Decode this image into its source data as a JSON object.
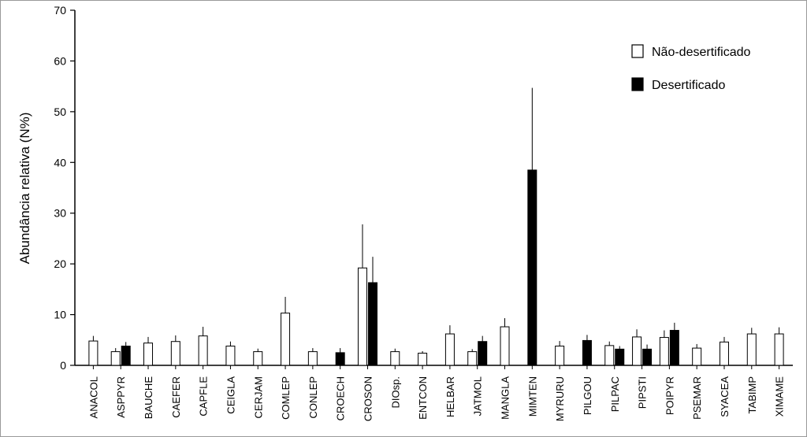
{
  "chart_data": {
    "type": "bar",
    "title": "",
    "xlabel": "",
    "ylabel": "Abundância relativa (N%)",
    "ylim": [
      0,
      70
    ],
    "yticks": [
      "0",
      "10",
      "20",
      "30",
      "40",
      "50",
      "60",
      "70"
    ],
    "ytick_values": [
      0,
      10,
      20,
      30,
      40,
      50,
      60,
      70
    ],
    "grid": false,
    "legend_position": "top-right",
    "categories": [
      "ANACOL",
      "ASPPYR",
      "BAUCHE",
      "CAEFER",
      "CAPFLE",
      "CEIGLA",
      "CERJAM",
      "COMLEP",
      "CONLEP",
      "CROECH",
      "CROSON",
      "DIOsp.",
      "ENTCON",
      "HELBAR",
      "JATMOL",
      "MANGLA",
      "MIMTEN",
      "MYRURU",
      "PILGOU",
      "PILPAC",
      "PIPSTI",
      "POIPYR",
      "PSEMAR",
      "SYACEA",
      "TABIMP",
      "XIMAME"
    ],
    "series": [
      {
        "name": "Não-desertificado",
        "color": "#ffffff",
        "values": [
          4.8,
          2.7,
          4.4,
          4.7,
          5.8,
          3.8,
          2.7,
          10.3,
          2.7,
          null,
          19.2,
          2.7,
          2.4,
          6.2,
          2.7,
          7.6,
          null,
          3.8,
          null,
          3.9,
          5.6,
          5.5,
          3.4,
          4.6,
          6.2,
          6.2
        ],
        "errors": [
          1.0,
          0.7,
          1.2,
          1.2,
          1.8,
          0.9,
          0.6,
          3.2,
          0.7,
          null,
          8.6,
          0.6,
          0.4,
          1.7,
          0.5,
          1.7,
          null,
          1.0,
          null,
          0.8,
          1.5,
          1.4,
          0.8,
          1.0,
          1.2,
          1.3
        ]
      },
      {
        "name": "Desertificado",
        "color": "#000000",
        "values": [
          null,
          3.8,
          null,
          null,
          null,
          null,
          null,
          null,
          null,
          2.5,
          16.3,
          null,
          null,
          null,
          4.7,
          null,
          38.5,
          null,
          4.9,
          3.2,
          3.2,
          6.9,
          null,
          null,
          null,
          null
        ],
        "errors": [
          null,
          0.8,
          null,
          null,
          null,
          null,
          null,
          null,
          null,
          0.9,
          5.1,
          null,
          null,
          null,
          1.1,
          null,
          16.2,
          null,
          1.1,
          0.6,
          0.9,
          1.5,
          null,
          null,
          null,
          null
        ]
      }
    ]
  }
}
